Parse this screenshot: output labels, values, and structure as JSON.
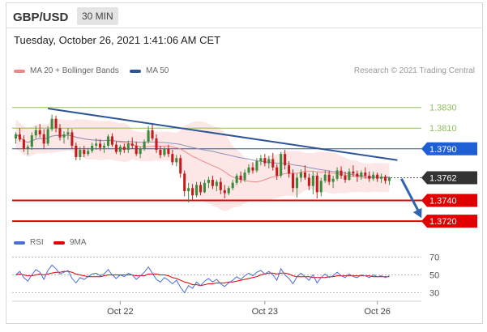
{
  "header": {
    "symbol": "GBP/USD",
    "timeframe": "30 MIN"
  },
  "timestamp": "Tuesday, October 26, 2021 1:41:06 AM CET",
  "legend": {
    "ma20_bb": "MA 20 + Bollinger Bands",
    "ma50": "MA 50",
    "credit": "Research © 2021 Trading Central",
    "rsi": "RSI",
    "ma9": "9MA"
  },
  "colors": {
    "ma20": "#f08a8a",
    "ma50": "#2f5597",
    "support": "#e00000",
    "resistance": "#8dbe5a",
    "up": "#3c8a3c",
    "down": "#c41c1c",
    "rsi": "#4a6fd4",
    "arrow": "#2f64b0"
  },
  "chart_data": [
    {
      "type": "candlestick",
      "pair": "GBP/USD",
      "interval": "30 MIN",
      "ylim": [
        1.3713,
        1.3858
      ],
      "xticks": [
        "Oct 22",
        "Oct 23",
        "Oct 26"
      ],
      "levels": [
        {
          "label": "1.3830",
          "value": 1.383,
          "kind": "resistance"
        },
        {
          "label": "1.3810",
          "value": 1.381,
          "kind": "resistance"
        },
        {
          "label": "1.3790",
          "value": 1.379,
          "kind": "pivot"
        },
        {
          "label": "1.3762",
          "value": 1.3762,
          "kind": "current"
        },
        {
          "label": "1.3740",
          "value": 1.374,
          "kind": "support"
        },
        {
          "label": "1.3720",
          "value": 1.372,
          "kind": "support"
        }
      ],
      "trendline": {
        "from": [
          8,
          1.3829
        ],
        "to": [
          95,
          1.3779
        ]
      },
      "forecast_arrow": {
        "from": [
          96,
          1.3761
        ],
        "to": [
          101,
          1.3723
        ]
      },
      "candles": [
        [
          1.38,
          1.3806,
          1.3795,
          1.3804
        ],
        [
          1.3804,
          1.381,
          1.3797,
          1.3799
        ],
        [
          1.3799,
          1.3803,
          1.3787,
          1.379
        ],
        [
          1.379,
          1.3794,
          1.3784,
          1.3792
        ],
        [
          1.3792,
          1.3806,
          1.3789,
          1.3803
        ],
        [
          1.3803,
          1.3812,
          1.38,
          1.3808
        ],
        [
          1.3808,
          1.3814,
          1.3801,
          1.3804
        ],
        [
          1.3804,
          1.3809,
          1.379,
          1.3795
        ],
        [
          1.3795,
          1.3812,
          1.3793,
          1.3809
        ],
        [
          1.3809,
          1.3823,
          1.3807,
          1.3819
        ],
        [
          1.3819,
          1.3822,
          1.3806,
          1.381
        ],
        [
          1.381,
          1.3814,
          1.3798,
          1.3801
        ],
        [
          1.3801,
          1.3807,
          1.3795,
          1.3804
        ],
        [
          1.3804,
          1.381,
          1.3799,
          1.3806
        ],
        [
          1.3806,
          1.3809,
          1.379,
          1.3793
        ],
        [
          1.3793,
          1.3796,
          1.3779,
          1.3782
        ],
        [
          1.3782,
          1.3792,
          1.3779,
          1.3789
        ],
        [
          1.3789,
          1.3793,
          1.3782,
          1.3785
        ],
        [
          1.3785,
          1.3791,
          1.3783,
          1.3788
        ],
        [
          1.3788,
          1.3796,
          1.3786,
          1.3793
        ],
        [
          1.3793,
          1.38,
          1.3789,
          1.3795
        ],
        [
          1.3795,
          1.3799,
          1.3788,
          1.3791
        ],
        [
          1.3791,
          1.3796,
          1.3786,
          1.3793
        ],
        [
          1.3793,
          1.3804,
          1.3791,
          1.3802
        ],
        [
          1.3802,
          1.3805,
          1.3792,
          1.3794
        ],
        [
          1.3794,
          1.3797,
          1.3785,
          1.3787
        ],
        [
          1.3787,
          1.3794,
          1.3784,
          1.3792
        ],
        [
          1.3792,
          1.3795,
          1.3786,
          1.3789
        ],
        [
          1.3789,
          1.3798,
          1.3786,
          1.3795
        ],
        [
          1.3795,
          1.3801,
          1.379,
          1.3793
        ],
        [
          1.3793,
          1.3797,
          1.3783,
          1.3785
        ],
        [
          1.3785,
          1.3792,
          1.3781,
          1.379
        ],
        [
          1.379,
          1.3799,
          1.3788,
          1.3797
        ],
        [
          1.3797,
          1.3812,
          1.3795,
          1.3808
        ],
        [
          1.3808,
          1.3815,
          1.3798,
          1.38
        ],
        [
          1.38,
          1.3804,
          1.3786,
          1.3789
        ],
        [
          1.3789,
          1.3793,
          1.3781,
          1.3784
        ],
        [
          1.3784,
          1.3792,
          1.3782,
          1.379
        ],
        [
          1.379,
          1.3794,
          1.3782,
          1.3785
        ],
        [
          1.3785,
          1.3789,
          1.3774,
          1.3777
        ],
        [
          1.3777,
          1.3784,
          1.3773,
          1.3781
        ],
        [
          1.3781,
          1.3784,
          1.3762,
          1.3766
        ],
        [
          1.3766,
          1.3769,
          1.3744,
          1.3749
        ],
        [
          1.3749,
          1.3757,
          1.3738,
          1.3752
        ],
        [
          1.3752,
          1.3756,
          1.3741,
          1.3745
        ],
        [
          1.3745,
          1.3758,
          1.3743,
          1.3755
        ],
        [
          1.3755,
          1.3758,
          1.3745,
          1.3748
        ],
        [
          1.3748,
          1.376,
          1.3747,
          1.3757
        ],
        [
          1.3757,
          1.3763,
          1.3752,
          1.376
        ],
        [
          1.376,
          1.3764,
          1.3751,
          1.3754
        ],
        [
          1.3754,
          1.376,
          1.3749,
          1.3758
        ],
        [
          1.3758,
          1.3762,
          1.3746,
          1.375
        ],
        [
          1.375,
          1.3755,
          1.3742,
          1.3747
        ],
        [
          1.3747,
          1.3754,
          1.3745,
          1.3752
        ],
        [
          1.3752,
          1.376,
          1.375,
          1.3757
        ],
        [
          1.3757,
          1.3766,
          1.3755,
          1.3764
        ],
        [
          1.3764,
          1.3768,
          1.3757,
          1.376
        ],
        [
          1.376,
          1.377,
          1.3758,
          1.3767
        ],
        [
          1.3767,
          1.3775,
          1.3765,
          1.3772
        ],
        [
          1.3772,
          1.3777,
          1.3766,
          1.3769
        ],
        [
          1.3769,
          1.3781,
          1.3767,
          1.3778
        ],
        [
          1.3778,
          1.3784,
          1.3774,
          1.3781
        ],
        [
          1.3781,
          1.3785,
          1.3773,
          1.3776
        ],
        [
          1.3776,
          1.3783,
          1.3771,
          1.378
        ],
        [
          1.378,
          1.3786,
          1.3769,
          1.3772
        ],
        [
          1.3772,
          1.3775,
          1.376,
          1.3764
        ],
        [
          1.3764,
          1.3787,
          1.3762,
          1.3785
        ],
        [
          1.3785,
          1.3789,
          1.377,
          1.3774
        ],
        [
          1.3774,
          1.3778,
          1.3762,
          1.3766
        ],
        [
          1.3766,
          1.377,
          1.3748,
          1.3752
        ],
        [
          1.3752,
          1.3766,
          1.3743,
          1.3762
        ],
        [
          1.3762,
          1.377,
          1.3758,
          1.3767
        ],
        [
          1.3767,
          1.3774,
          1.376,
          1.3762
        ],
        [
          1.3762,
          1.3766,
          1.375,
          1.3754
        ],
        [
          1.3754,
          1.3768,
          1.3746,
          1.3764
        ],
        [
          1.3764,
          1.3767,
          1.3742,
          1.3748
        ],
        [
          1.3748,
          1.3762,
          1.3744,
          1.3759
        ],
        [
          1.3759,
          1.3769,
          1.3757,
          1.3765
        ],
        [
          1.3765,
          1.3769,
          1.3755,
          1.3758
        ],
        [
          1.3758,
          1.3764,
          1.3752,
          1.3761
        ],
        [
          1.3761,
          1.3772,
          1.3759,
          1.3769
        ],
        [
          1.3769,
          1.3773,
          1.3761,
          1.3764
        ],
        [
          1.3764,
          1.3768,
          1.3757,
          1.376
        ],
        [
          1.376,
          1.3771,
          1.3759,
          1.3768
        ],
        [
          1.3768,
          1.3774,
          1.3763,
          1.3766
        ],
        [
          1.3766,
          1.3769,
          1.3758,
          1.3763
        ],
        [
          1.3763,
          1.3769,
          1.376,
          1.3767
        ],
        [
          1.3767,
          1.3772,
          1.3761,
          1.3764
        ],
        [
          1.3764,
          1.3768,
          1.3758,
          1.3761
        ],
        [
          1.3761,
          1.3768,
          1.3759,
          1.3765
        ],
        [
          1.3765,
          1.3767,
          1.3758,
          1.3761
        ],
        [
          1.3761,
          1.3766,
          1.3757,
          1.3763
        ],
        [
          1.3763,
          1.3765,
          1.3756,
          1.3759
        ],
        [
          1.3759,
          1.3763,
          1.3755,
          1.3762
        ]
      ]
    },
    {
      "type": "line",
      "title": "RSI",
      "ylim": [
        25,
        75
      ],
      "yticks": [
        "70",
        "50",
        "30"
      ],
      "series": [
        {
          "name": "RSI",
          "values": [
            50,
            54,
            47,
            43,
            50,
            56,
            53,
            45,
            55,
            61,
            57,
            51,
            53,
            55,
            46,
            41,
            47,
            45,
            48,
            51,
            52,
            49,
            51,
            56,
            50,
            46,
            50,
            48,
            52,
            50,
            45,
            49,
            53,
            59,
            52,
            45,
            42,
            47,
            44,
            40,
            44,
            36,
            30,
            38,
            35,
            42,
            38,
            43,
            46,
            42,
            45,
            40,
            37,
            41,
            44,
            48,
            45,
            49,
            52,
            49,
            53,
            55,
            51,
            54,
            50,
            44,
            57,
            50,
            46,
            40,
            48,
            52,
            48,
            44,
            50,
            41,
            47,
            51,
            47,
            49,
            53,
            49,
            47,
            51,
            48,
            47,
            50,
            49,
            47,
            50,
            48,
            49,
            47,
            49
          ]
        },
        {
          "name": "9MA",
          "values": [
            50,
            51,
            50,
            49,
            49,
            50,
            51,
            50,
            51,
            52,
            53,
            53,
            54,
            54,
            53,
            51,
            50,
            49,
            48,
            48,
            48,
            48,
            49,
            50,
            50,
            50,
            50,
            50,
            50,
            50,
            49,
            49,
            49,
            51,
            51,
            51,
            50,
            50,
            49,
            47,
            46,
            44,
            42,
            41,
            39,
            39,
            38,
            39,
            40,
            40,
            41,
            41,
            41,
            42,
            42,
            43,
            44,
            45,
            46,
            47,
            48,
            50,
            51,
            52,
            52,
            51,
            52,
            52,
            51,
            49,
            48,
            48,
            48,
            48,
            47,
            47,
            47,
            47,
            48,
            48,
            49,
            49,
            49,
            49,
            49,
            49,
            49,
            49,
            49,
            48,
            48,
            48,
            48,
            48
          ]
        }
      ]
    }
  ]
}
